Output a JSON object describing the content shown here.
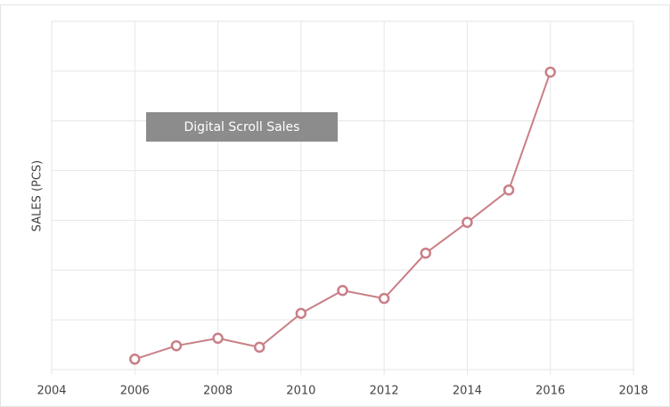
{
  "chart_data": {
    "type": "line",
    "title": "Digital Scroll Sales",
    "y_label": "SALES (PCS)",
    "x": [
      2006,
      2007,
      2008,
      2009,
      2010,
      2011,
      2012,
      2013,
      2014,
      2015,
      2016
    ],
    "series": [
      {
        "name": "Digital Scroll Sales",
        "color": "#c97f86",
        "values": [
          0.21,
          0.48,
          0.63,
          0.45,
          1.13,
          1.59,
          1.43,
          2.34,
          2.96,
          3.61,
          5.98
        ]
      }
    ],
    "xlim": [
      2004,
      2018
    ],
    "xticks": [
      2004,
      2006,
      2008,
      2010,
      2012,
      2014,
      2016,
      2018
    ],
    "ylim": [
      0,
      7
    ],
    "yticks": [
      0,
      1,
      2,
      3,
      4,
      5,
      6,
      7
    ],
    "grid": true
  }
}
